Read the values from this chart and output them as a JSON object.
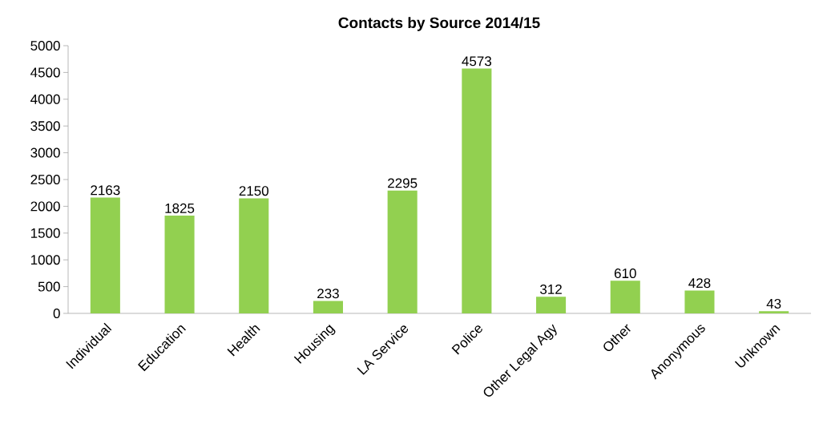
{
  "chart_data": {
    "type": "bar",
    "title": "Contacts by Source 2014/15",
    "categories": [
      "Individual",
      "Education",
      "Health",
      "Housing",
      "LA Service",
      "Police",
      "Other Legal Agy",
      "Other",
      "Anonymous",
      "Unknown"
    ],
    "values": [
      2163,
      1825,
      2150,
      233,
      2295,
      4573,
      312,
      610,
      428,
      43
    ],
    "color": "#92d050",
    "ylim": [
      0,
      5000
    ],
    "yticks": [
      0,
      500,
      1000,
      1500,
      2000,
      2500,
      3000,
      3500,
      4000,
      4500,
      5000
    ],
    "data_labels": true,
    "grid": false
  }
}
